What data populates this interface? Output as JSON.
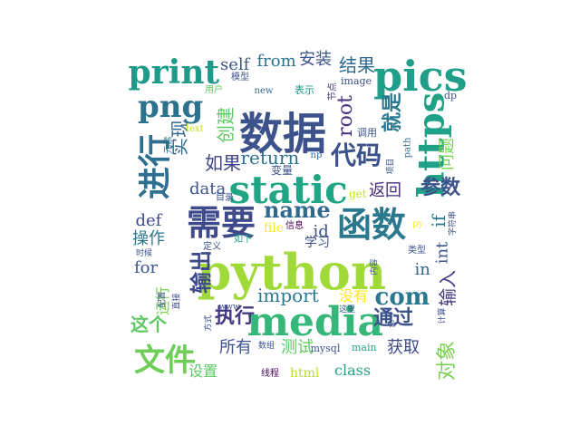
{
  "words": [
    {
      "text": "数据",
      "color": "#3b528b"
    },
    {
      "text": "python",
      "color": "#a0da39"
    },
    {
      "text": "media",
      "color": "#35b779"
    },
    {
      "text": "static",
      "color": "#21a685"
    },
    {
      "text": "pics",
      "color": "#1f9e89"
    },
    {
      "text": "https",
      "color": "#1fa187"
    },
    {
      "text": "需要",
      "color": "#3e4a89"
    },
    {
      "text": "函数",
      "color": "#2a788e"
    },
    {
      "text": "print",
      "color": "#1f9a8a"
    },
    {
      "text": "png",
      "color": "#2c728e"
    },
    {
      "text": "进行",
      "color": "#2e6e8e"
    },
    {
      "text": "文件",
      "color": "#6ece58"
    },
    {
      "text": "代码",
      "color": "#3b528b"
    },
    {
      "text": "name",
      "color": "#31688e"
    },
    {
      "text": "com",
      "color": "#2a788e"
    },
    {
      "text": "import",
      "color": "#2a788e"
    },
    {
      "text": "执行",
      "color": "#443a83"
    },
    {
      "text": "结果",
      "color": "#31688e"
    },
    {
      "text": "输出",
      "color": "#3e4a89"
    },
    {
      "text": "就是",
      "color": "#2a788e"
    },
    {
      "text": "root",
      "color": "#46327e"
    },
    {
      "text": "return",
      "color": "#2c728e"
    },
    {
      "text": "如果",
      "color": "#414487"
    },
    {
      "text": "data",
      "color": "#3b528b"
    },
    {
      "text": "def",
      "color": "#3e4a89"
    },
    {
      "text": "for",
      "color": "#3b528b"
    },
    {
      "text": "操作",
      "color": "#2a788e"
    },
    {
      "text": "这个",
      "color": "#5ec962"
    },
    {
      "text": "self",
      "color": "#3b528b"
    },
    {
      "text": "from",
      "color": "#2c728e"
    },
    {
      "text": "安装",
      "color": "#3b528b"
    },
    {
      "text": "创建",
      "color": "#5ec962"
    },
    {
      "text": "实现",
      "color": "#31688e"
    },
    {
      "text": "通过",
      "color": "#3b528b"
    },
    {
      "text": "参数",
      "color": "#3b528b"
    },
    {
      "text": "返回",
      "color": "#472d7b"
    },
    {
      "text": "if",
      "color": "#2a788e"
    },
    {
      "text": "int",
      "color": "#3b528b"
    },
    {
      "text": "in",
      "color": "#31688e"
    },
    {
      "text": "id",
      "color": "#3b528b"
    },
    {
      "text": "输入",
      "color": "#443a83"
    },
    {
      "text": "对象",
      "color": "#7ad151"
    },
    {
      "text": "问题",
      "color": "#7ad151"
    },
    {
      "text": "所有",
      "color": "#3b528b"
    },
    {
      "text": "获取",
      "color": "#3e4a89"
    },
    {
      "text": "测试",
      "color": "#5ec962"
    },
    {
      "text": "class",
      "color": "#21a685"
    },
    {
      "text": "html",
      "color": "#b5de2b"
    },
    {
      "text": "设置",
      "color": "#5ec962"
    },
    {
      "text": "没有",
      "color": "#fde725"
    },
    {
      "text": "运行",
      "color": "#7ad151"
    },
    {
      "text": "学习",
      "color": "#3b528b"
    },
    {
      "text": "file",
      "color": "#fde725"
    },
    {
      "text": "get",
      "color": "#c8e020"
    },
    {
      "text": "变量",
      "color": "#3b528b"
    },
    {
      "text": "调用",
      "color": "#3b528b"
    },
    {
      "text": "image",
      "color": "#3b528b"
    },
    {
      "text": "模型",
      "color": "#3b528b"
    },
    {
      "text": "用户",
      "color": "#5ec962"
    },
    {
      "text": "new",
      "color": "#31688e"
    },
    {
      "text": "表示",
      "color": "#1f9a8a"
    },
    {
      "text": "节点",
      "color": "#46327e"
    },
    {
      "text": "dp",
      "color": "#3b528b"
    },
    {
      "text": "text",
      "color": "#c8e020"
    },
    {
      "text": "np",
      "color": "#31688e"
    },
    {
      "text": "元素",
      "color": "#2c728e"
    },
    {
      "text": "目录",
      "color": "#3b528b"
    },
    {
      "text": "path",
      "color": "#31688e"
    },
    {
      "text": "项目",
      "color": "#3b528b"
    },
    {
      "text": "信息",
      "color": "#440154"
    },
    {
      "text": "py",
      "color": "#fde725"
    },
    {
      "text": "如下",
      "color": "#1fa187"
    },
    {
      "text": "定义",
      "color": "#3b528b"
    },
    {
      "text": "类型",
      "color": "#3b528b"
    },
    {
      "text": "字符串",
      "color": "#3b528b"
    },
    {
      "text": "时候",
      "color": "#3b528b"
    },
    {
      "text": "配置",
      "color": "#3b528b"
    },
    {
      "text": "内容",
      "color": "#3b528b"
    },
    {
      "text": "命令",
      "color": "#3b528b"
    },
    {
      "text": "计算",
      "color": "#3b528b"
    },
    {
      "text": "直接",
      "color": "#3b528b"
    },
    {
      "text": "www",
      "color": "#3b528b"
    },
    {
      "text": "这里",
      "color": "#3b528b"
    },
    {
      "text": "方式",
      "color": "#3b528b"
    },
    {
      "text": "数组",
      "color": "#3b528b"
    },
    {
      "text": "mysql",
      "color": "#3b528b"
    },
    {
      "text": "main",
      "color": "#21a685"
    },
    {
      "text": "线程",
      "color": "#440154"
    }
  ]
}
